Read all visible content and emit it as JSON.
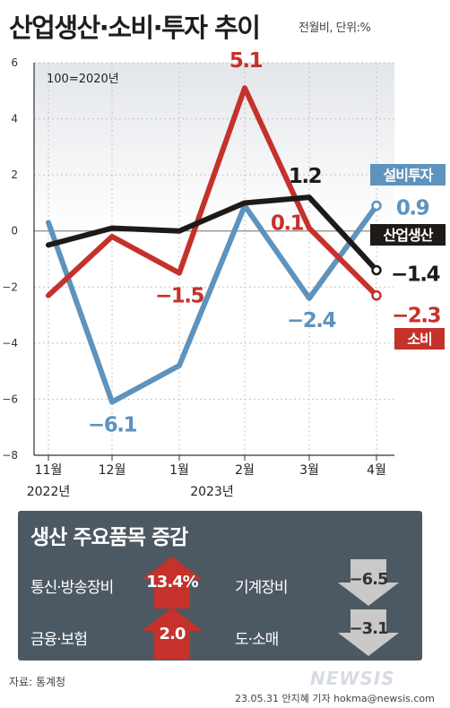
{
  "title": "산업생산·소비·투자 추이",
  "subtitle": "전월비, 단위:%",
  "chart_data": {
    "type": "line",
    "ylim": [
      -8,
      6
    ],
    "yticks": [
      6,
      4,
      2,
      0,
      -2,
      -4,
      -6,
      -8
    ],
    "ytick_labels": [
      "6",
      "4",
      "2",
      "0",
      "−2",
      "−4",
      "−6",
      "−8"
    ],
    "x": [
      "11월",
      "12월",
      "1월",
      "2월",
      "3월",
      "4월"
    ],
    "year_labels": [
      {
        "text": "2022년",
        "index": 0
      },
      {
        "text": "2023년",
        "index": 2.5
      }
    ],
    "annotation": "100=2020년",
    "series": [
      {
        "name": "설비투자",
        "color": "#5e93bd",
        "values": [
          0.3,
          -6.1,
          -4.8,
          0.9,
          -2.4,
          0.9
        ],
        "labels": [
          null,
          "−6.1",
          null,
          null,
          "−2.4",
          "0.9"
        ]
      },
      {
        "name": "소비",
        "color": "#c4322b",
        "values": [
          -2.3,
          -0.2,
          -1.5,
          5.1,
          0.1,
          -2.3
        ],
        "labels": [
          null,
          null,
          "−1.5",
          "5.1",
          "0.1",
          "−2.3"
        ]
      },
      {
        "name": "산업생산",
        "color": "#1f1a17",
        "values": [
          -0.5,
          0.1,
          0.0,
          1.0,
          1.2,
          -1.4
        ],
        "labels": [
          null,
          null,
          null,
          null,
          "1.2",
          "−1.4"
        ]
      }
    ]
  },
  "summary": {
    "title": "생산 주요품목 증감",
    "items": [
      {
        "label": "통신·방송장비",
        "value": "13.4%",
        "direction": "up"
      },
      {
        "label": "기계장비",
        "value": "−6.5",
        "direction": "down"
      },
      {
        "label": "금융·보험",
        "value": "2.0",
        "direction": "up"
      },
      {
        "label": "도·소매",
        "value": "−3.1",
        "direction": "down"
      }
    ]
  },
  "colors": {
    "up": "#c4322b",
    "down": "#c9c9c9",
    "panel": "#4d5962"
  },
  "source": "자료: 통계청",
  "credit": "23.05.31 안지혜 기자 hokma@newsis.com",
  "watermark": "NEWSIS"
}
